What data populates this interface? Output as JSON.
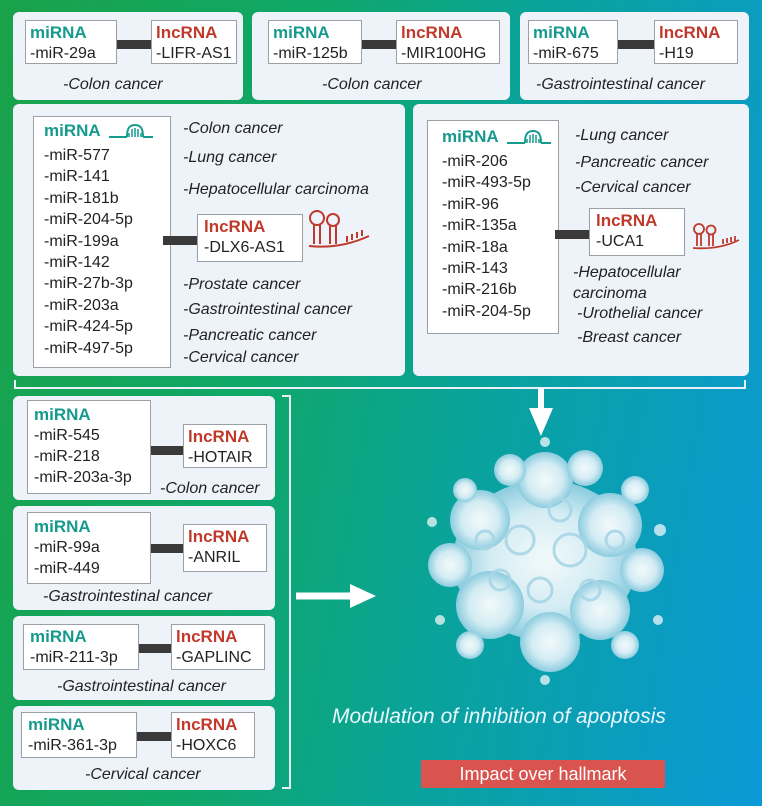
{
  "labels": {
    "mirna": "miRNA",
    "lncrna": "lncRNA"
  },
  "colors": {
    "mirna": "#169a8e",
    "lncrna": "#c0392b",
    "banner": "#d9534f",
    "connector": "#3a3a3a"
  },
  "top": [
    {
      "mirna": [
        "-miR-29a"
      ],
      "lncrna": "-LIFR-AS1",
      "cancer": "-Colon cancer"
    },
    {
      "mirna": [
        "-miR-125b"
      ],
      "lncrna": "-MIR100HG",
      "cancer": "-Colon cancer"
    },
    {
      "mirna": [
        "-miR-675"
      ],
      "lncrna": "-H19",
      "cancer": "-Gastrointestinal cancer"
    }
  ],
  "dlx6": {
    "mirna": [
      "-miR-577",
      "-miR-141",
      "-miR-181b",
      "-miR-204-5p",
      "-miR-199a",
      "-miR-142",
      "-miR-27b-3p",
      "-miR-203a",
      "-miR-424-5p",
      "-miR-497-5p"
    ],
    "lncrna": "-DLX6-AS1",
    "cancers_top": [
      "-Colon cancer",
      "-Lung cancer",
      "-Hepatocellular carcinoma"
    ],
    "cancers_bottom": [
      "-Prostate cancer",
      "-Gastrointestinal cancer",
      "-Pancreatic cancer",
      "-Cervical cancer"
    ]
  },
  "uca1": {
    "mirna": [
      "-miR-206",
      "-miR-493-5p",
      "-miR-96",
      "-miR-135a",
      "-miR-18a",
      "-miR-143",
      "-miR-216b",
      "-miR-204-5p"
    ],
    "lncrna": "-UCA1",
    "cancers_top": [
      "-Lung cancer",
      "-Pancreatic cancer",
      "-Cervical cancer"
    ],
    "cancers_bottom": [
      "-Hepatocellular",
      "carcinoma",
      "-Urothelial cancer",
      "-Breast cancer"
    ]
  },
  "left": [
    {
      "mirna": [
        "-miR-545",
        "-miR-218",
        "-miR-203a-3p"
      ],
      "lncrna": "-HOTAIR",
      "cancer": "-Colon cancer"
    },
    {
      "mirna": [
        "-miR-99a",
        "-miR-449"
      ],
      "lncrna": "-ANRIL",
      "cancer": "-Gastrointestinal cancer"
    },
    {
      "mirna": [
        "-miR-211-3p"
      ],
      "lncrna": "-GAPLINC",
      "cancer": "-Gastrointestinal cancer"
    },
    {
      "mirna": [
        "-miR-361-3p"
      ],
      "lncrna": "-HOXC6",
      "cancer": "-Cervical cancer"
    }
  ],
  "outcome": "Modulation of inhibition of apoptosis",
  "banner": "Impact over hallmark"
}
